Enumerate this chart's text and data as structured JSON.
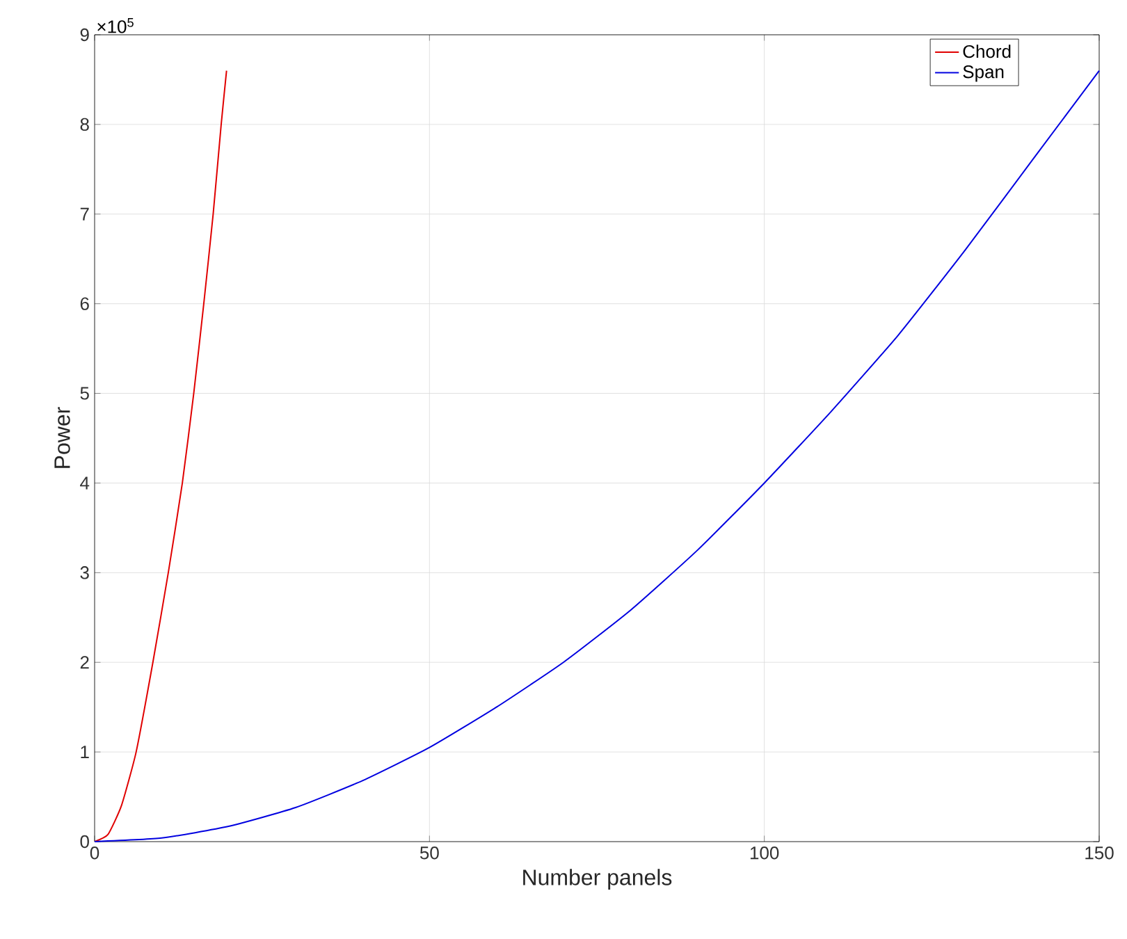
{
  "chart_data": {
    "type": "line",
    "xlabel": "Number panels",
    "ylabel": "Power",
    "xlim": [
      0,
      150
    ],
    "xticks": [
      0,
      50,
      100,
      150
    ],
    "ylim": [
      0,
      9
    ],
    "yticks": [
      0,
      1,
      2,
      3,
      4,
      5,
      6,
      7,
      8,
      9
    ],
    "annotations": [
      "×10$^{5}$"
    ],
    "grid": true,
    "legend": "top right",
    "series": [
      {
        "name": "Chord",
        "color": "#e00000",
        "x": [
          0,
          2,
          4,
          6.2,
          8.7,
          11,
          13.1,
          14.8,
          16.3,
          17.7,
          18.9,
          19.7
        ],
        "values": [
          0,
          0.08,
          0.4,
          1,
          2,
          3,
          4,
          5,
          6,
          7,
          8,
          8.6
        ]
      },
      {
        "name": "Span",
        "color": "#0000e0",
        "x": [
          0,
          10,
          20,
          30,
          40,
          50,
          60,
          70,
          80,
          90,
          100,
          110,
          120,
          130,
          140,
          150
        ],
        "values": [
          0,
          0.04,
          0.17,
          0.38,
          0.68,
          1.05,
          1.5,
          2,
          2.58,
          3.25,
          4,
          4.8,
          5.65,
          6.6,
          7.6,
          8.6
        ]
      }
    ]
  }
}
